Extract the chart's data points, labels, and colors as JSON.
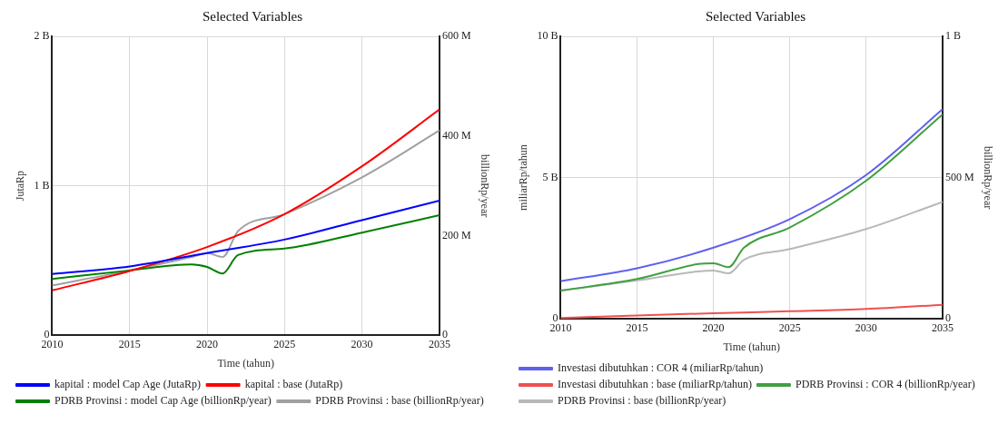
{
  "chart_data": [
    {
      "type": "line",
      "title": "Selected Variables",
      "xlabel": "Time (tahun)",
      "ylabel": "JutaRp",
      "y2label": "billionRp/year",
      "xlim": [
        2010,
        2035
      ],
      "xticks": [
        2010,
        2015,
        2020,
        2025,
        2030,
        2035
      ],
      "ylim": [
        0,
        2000000000
      ],
      "yticks": [
        0,
        {
          "value": 1000000000,
          "label": "1 B"
        },
        {
          "value": 2000000000,
          "label": "2 B"
        }
      ],
      "y2lim": [
        0,
        600000000
      ],
      "y2ticks": [
        0,
        {
          "value": 200000000,
          "label": "200 M"
        },
        {
          "value": 400000000,
          "label": "400 M"
        },
        {
          "value": 600000000,
          "label": "600 M"
        }
      ],
      "grid": true,
      "legend": "bottom",
      "marker": "none",
      "line_style": "solid",
      "series": [
        {
          "name": "kapital : model Cap Age (JutaRp)",
          "color": "#0000ff",
          "x": [
            2010,
            2015,
            2020,
            2025,
            2030,
            2035
          ],
          "values": [
            410000000,
            460000000,
            550000000,
            640000000,
            770000000,
            900000000
          ]
        },
        {
          "name": "kapital : base (JutaRp)",
          "color": "#ff0000",
          "x": [
            2010,
            2015,
            2020,
            2025,
            2030,
            2035
          ],
          "values": [
            300000000,
            430000000,
            590000000,
            810000000,
            1130000000,
            1510000000
          ]
        },
        {
          "name": "PDRB Provinsi : model Cap Age (billionRp/year)",
          "color": "#008000",
          "axis": "y2",
          "x": [
            2010,
            2015,
            2019,
            2020,
            2021,
            2022,
            2025,
            2030,
            2035
          ],
          "values": [
            113000000,
            130000000,
            142000000,
            137000000,
            124000000,
            161000000,
            174000000,
            206000000,
            241000000
          ]
        },
        {
          "name": "PDRB Provinsi : base (billionRp/year)",
          "color": "#a0a0a0",
          "axis": "y2",
          "x": [
            2010,
            2015,
            2019,
            2020,
            2021,
            2022,
            2025,
            2030,
            2035
          ],
          "values": [
            100000000,
            130000000,
            157000000,
            165000000,
            157000000,
            209000000,
            243000000,
            317000000,
            411000000
          ]
        }
      ]
    },
    {
      "type": "line",
      "title": "Selected Variables",
      "xlabel": "Time (tahun)",
      "ylabel": "miliarRp/tahun",
      "y2label": "billionRp/year",
      "xlim": [
        2010,
        2035
      ],
      "xticks": [
        2010,
        2015,
        2020,
        2025,
        2030,
        2035
      ],
      "ylim": [
        0,
        10000000000
      ],
      "yticks": [
        0,
        {
          "value": 5000000000,
          "label": "5 B"
        },
        {
          "value": 10000000000,
          "label": "10 B"
        }
      ],
      "y2lim": [
        0,
        1000000000
      ],
      "y2ticks": [
        0,
        {
          "value": 500000000,
          "label": "500 M"
        },
        {
          "value": 1000000000,
          "label": "1 B"
        }
      ],
      "grid": true,
      "legend": "bottom",
      "marker": "none",
      "line_style": "solid",
      "series": [
        {
          "name": "Investasi dibutuhkan : COR 4 (miliarRp/tahun)",
          "color": "#6060f0",
          "x": [
            2010,
            2015,
            2020,
            2025,
            2030,
            2035
          ],
          "values": [
            1330000000,
            1790000000,
            2520000000,
            3530000000,
            5090000000,
            7420000000
          ]
        },
        {
          "name": "Investasi dibutuhkan : base (miliarRp/tahun)",
          "color": "#f05050",
          "x": [
            2010,
            2015,
            2020,
            2025,
            2030,
            2035
          ],
          "values": [
            30000000,
            120000000,
            200000000,
            270000000,
            350000000,
            500000000
          ]
        },
        {
          "name": "PDRB Provinsi : COR 4 (billionRp/year)",
          "color": "#40a040",
          "axis": "y2",
          "x": [
            2010,
            2015,
            2019,
            2020,
            2021,
            2022,
            2025,
            2030,
            2035
          ],
          "values": [
            100000000,
            141000000,
            194000000,
            197000000,
            183000000,
            252000000,
            323000000,
            489000000,
            724000000
          ]
        },
        {
          "name": "PDRB Provinsi : base (billionRp/year)",
          "color": "#b8b8b8",
          "axis": "y2",
          "x": [
            2010,
            2015,
            2019,
            2020,
            2021,
            2022,
            2025,
            2030,
            2035
          ],
          "values": [
            100000000,
            136000000,
            168000000,
            171000000,
            161000000,
            209000000,
            247000000,
            318000000,
            414000000
          ]
        }
      ]
    }
  ]
}
